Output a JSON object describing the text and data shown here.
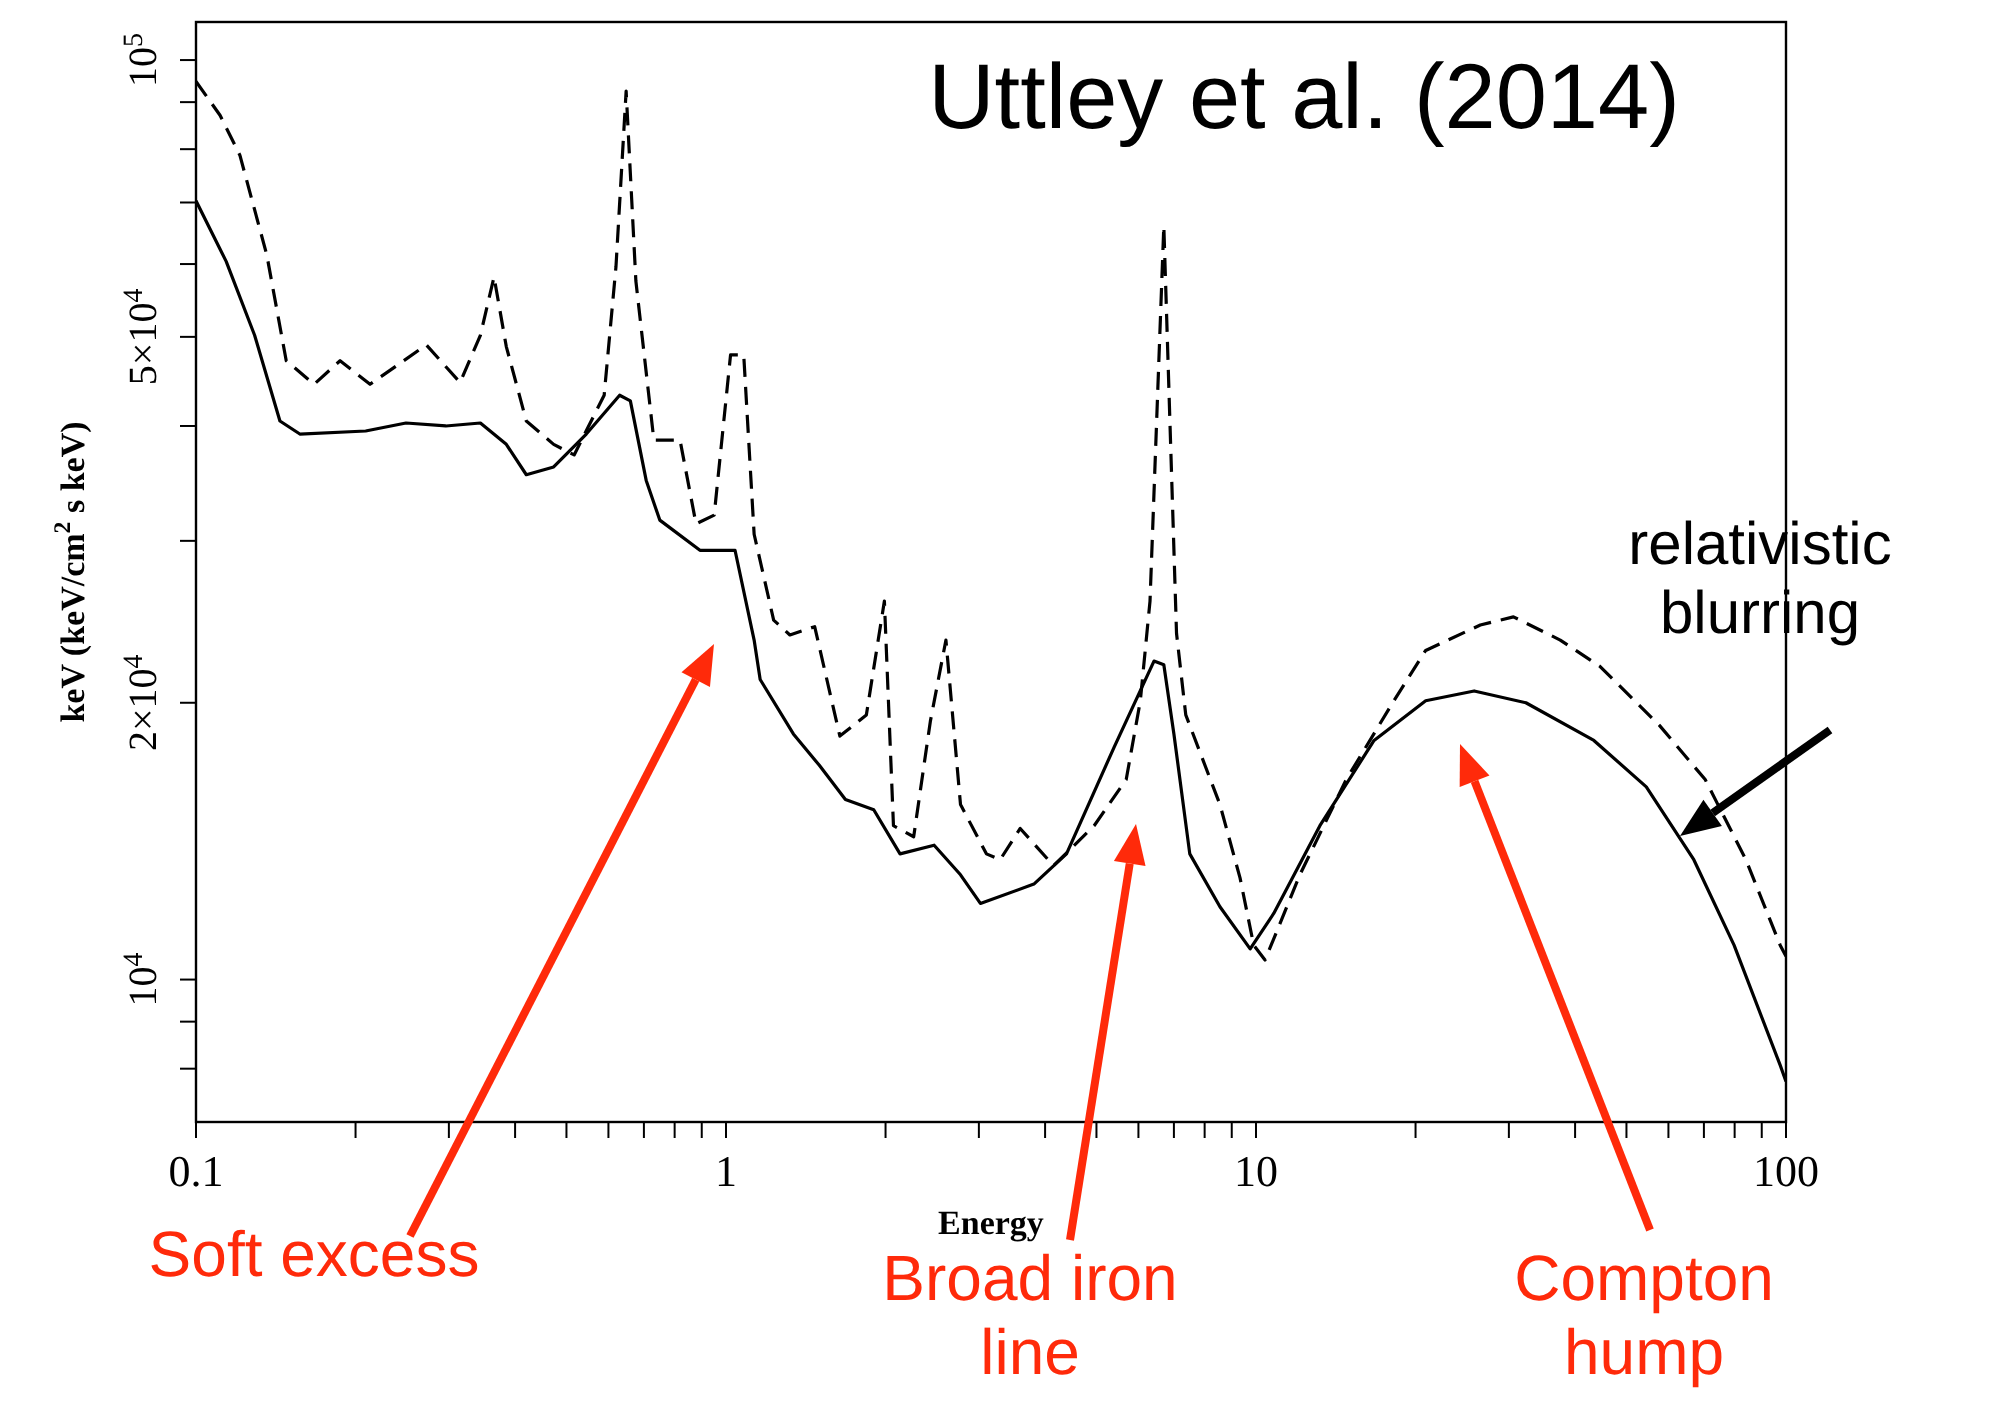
{
  "chart_data": {
    "type": "line",
    "xlabel": "Energy",
    "ylabel": "keV (keV/cm$^{2}$ s keV)",
    "log": "xy",
    "xlim": [
      0.1,
      100
    ],
    "ylim": [
      7000,
      110000
    ],
    "xticks": [
      {
        "value": 0.1,
        "label": "0.1"
      },
      {
        "value": 0.2,
        "label": null
      },
      {
        "value": 0.3,
        "label": null
      },
      {
        "value": 0.4,
        "label": null
      },
      {
        "value": 0.5,
        "label": null
      },
      {
        "value": 0.6,
        "label": null
      },
      {
        "value": 0.7,
        "label": null
      },
      {
        "value": 0.8,
        "label": null
      },
      {
        "value": 0.9,
        "label": null
      },
      1,
      {
        "value": 2,
        "label": null
      },
      {
        "value": 3,
        "label": null
      },
      {
        "value": 4,
        "label": null
      },
      {
        "value": 5,
        "label": null
      },
      {
        "value": 6,
        "label": null
      },
      {
        "value": 7,
        "label": null
      },
      {
        "value": 8,
        "label": null
      },
      {
        "value": 9,
        "label": null
      },
      10,
      {
        "value": 20,
        "label": null
      },
      {
        "value": 30,
        "label": null
      },
      {
        "value": 40,
        "label": null
      },
      {
        "value": 50,
        "label": null
      },
      {
        "value": 60,
        "label": null
      },
      {
        "value": 70,
        "label": null
      },
      {
        "value": 80,
        "label": null
      },
      {
        "value": 90,
        "label": null
      },
      100
    ],
    "yticks": [
      {
        "value": 8000,
        "label": null
      },
      {
        "value": 9000,
        "label": null
      },
      {
        "value": 10000,
        "label": "10$^{4}$"
      },
      {
        "value": 20000,
        "label": "2×10$^{4}$"
      },
      {
        "value": 30000,
        "label": null
      },
      {
        "value": 40000,
        "label": null
      },
      {
        "value": 50000,
        "label": "5×10$^{4}$"
      },
      {
        "value": 60000,
        "label": null
      },
      {
        "value": 70000,
        "label": null
      },
      {
        "value": 80000,
        "label": null
      },
      {
        "value": 90000,
        "label": null
      },
      {
        "value": 100000,
        "label": "10$^{5}$"
      }
    ],
    "marker": "none",
    "series": [
      {
        "color": "#000000",
        "line_style": "solid",
        "x": [
          0.1,
          0.114,
          0.129,
          0.144,
          0.157,
          0.209,
          0.249,
          0.296,
          0.344,
          0.385,
          0.42,
          0.473,
          0.545,
          0.63,
          0.66,
          0.707,
          0.75,
          0.893,
          1.04,
          1.13,
          1.16,
          1.34,
          1.5,
          1.68,
          1.9,
          2.13,
          2.47,
          2.77,
          3.02,
          3.81,
          4.39,
          5.4,
          6.42,
          6.7,
          7.0,
          7.5,
          8.55,
          9.75,
          10.8,
          13.2,
          16.7,
          20.9,
          25.8,
          32.3,
          43.4,
          54.5,
          67,
          79.8,
          97.5,
          100
        ],
        "values": [
          70300,
          60400,
          50200,
          40500,
          39200,
          39500,
          40300,
          40000,
          40300,
          38200,
          35400,
          36100,
          39200,
          43200,
          42600,
          34900,
          31600,
          29300,
          29300,
          23400,
          21200,
          18500,
          17100,
          15700,
          15300,
          13700,
          14000,
          13000,
          12100,
          12700,
          13700,
          17900,
          22200,
          22000,
          18500,
          13700,
          12000,
          10800,
          11800,
          14700,
          18200,
          20100,
          20600,
          20000,
          18200,
          16200,
          13500,
          10900,
          8070,
          7750
        ]
      },
      {
        "color": "#000000",
        "line_style": "dashed",
        "x": [
          0.1,
          0.111,
          0.121,
          0.136,
          0.148,
          0.167,
          0.187,
          0.213,
          0.272,
          0.315,
          0.344,
          0.365,
          0.385,
          0.42,
          0.473,
          0.517,
          0.589,
          0.62,
          0.648,
          0.676,
          0.731,
          0.819,
          0.878,
          0.95,
          1.02,
          1.08,
          1.13,
          1.23,
          1.32,
          1.47,
          1.64,
          1.84,
          1.99,
          2.07,
          2.26,
          2.43,
          2.6,
          2.77,
          3.1,
          3.29,
          3.59,
          4.15,
          4.95,
          5.69,
          6.05,
          6.31,
          6.7,
          7.08,
          7.37,
          8.55,
          9.33,
          9.9,
          10.4,
          12.1,
          14.8,
          18.2,
          20.9,
          26.5,
          30.6,
          37.5,
          44.6,
          57.7,
          70.4,
          84,
          97.5,
          100
        ],
        "values": [
          94800,
          87100,
          78800,
          61400,
          47100,
          44400,
          47100,
          44400,
          49000,
          44600,
          50200,
          58100,
          48800,
          40500,
          38200,
          37200,
          43200,
          59600,
          92500,
          57500,
          38600,
          38600,
          31300,
          32000,
          47800,
          47800,
          30500,
          24600,
          23700,
          24200,
          18400,
          19400,
          25800,
          14700,
          14300,
          19100,
          23400,
          15500,
          13700,
          13500,
          14600,
          13300,
          14700,
          16500,
          20100,
          25800,
          66000,
          23800,
          19400,
          15500,
          12900,
          10900,
          10500,
          13000,
          16500,
          20100,
          22800,
          24300,
          24800,
          23400,
          21900,
          18900,
          16500,
          13500,
          10900,
          10600
        ]
      }
    ],
    "annotations": [
      "Uttley et al. (2014)",
      "Soft excess",
      "Broad iron line",
      "Compton hump",
      "relativistic blurring"
    ]
  }
}
